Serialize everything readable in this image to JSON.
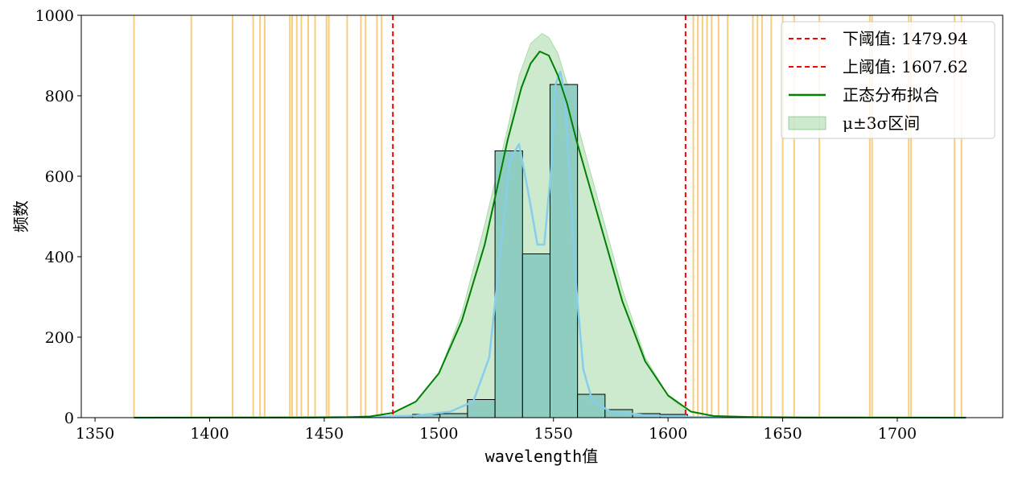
{
  "chart_data": {
    "type": "bar",
    "title": "",
    "xlabel": "wavelength值",
    "ylabel": "频数",
    "xlim": [
      1344,
      1746
    ],
    "ylim": [
      0,
      1000
    ],
    "xticks": [
      1350,
      1400,
      1450,
      1500,
      1550,
      1600,
      1650,
      1700
    ],
    "yticks": [
      0,
      200,
      400,
      600,
      800,
      1000
    ],
    "grid": false,
    "legend_position": "top-right",
    "histogram": {
      "bin_edges": [
        1476.5,
        1488.5,
        1500.5,
        1512.5,
        1524.5,
        1536.5,
        1548.5,
        1560.5,
        1572.5,
        1584.5,
        1596.5,
        1608.5
      ],
      "counts": [
        3,
        8,
        10,
        45,
        663,
        407,
        828,
        58,
        20,
        10,
        8
      ],
      "fill_color": "#8ccbc0",
      "edge_color": "#000000"
    },
    "kde_line": {
      "color": "#87ceeb",
      "x": [
        1367,
        1470,
        1490,
        1505,
        1515,
        1522,
        1527,
        1531,
        1535,
        1539,
        1543,
        1546,
        1549,
        1551,
        1553,
        1555,
        1557,
        1560,
        1563,
        1567,
        1575,
        1590,
        1610,
        1730
      ],
      "y": [
        0,
        2,
        5,
        15,
        40,
        150,
        420,
        640,
        680,
        560,
        430,
        430,
        620,
        830,
        860,
        800,
        600,
        320,
        120,
        40,
        15,
        6,
        2,
        0
      ]
    },
    "series": [
      {
        "name": "下阈值: 1479.94",
        "type": "vline",
        "x": 1479.94,
        "color": "#ff0000",
        "style": "dashed"
      },
      {
        "name": "上阈值: 1607.62",
        "type": "vline",
        "x": 1607.62,
        "color": "#ff0000",
        "style": "dashed"
      },
      {
        "name": "正态分布拟合",
        "type": "line",
        "color": "#008000",
        "x": [
          1367,
          1440,
          1460,
          1470,
          1480,
          1490,
          1500,
          1510,
          1520,
          1530,
          1536,
          1540,
          1544,
          1548,
          1552,
          1556,
          1560,
          1570,
          1580,
          1590,
          1600,
          1610,
          1620,
          1640,
          1660,
          1730
        ],
        "y": [
          0,
          0,
          1,
          3,
          12,
          40,
          110,
          240,
          430,
          690,
          820,
          880,
          910,
          900,
          850,
          780,
          690,
          490,
          290,
          140,
          55,
          15,
          4,
          1,
          0,
          0
        ]
      },
      {
        "name": "μ±3σ区间",
        "type": "area",
        "color": "#4caf50",
        "opacity": 0.28,
        "x": [
          1480,
          1490,
          1500,
          1510,
          1520,
          1530,
          1535,
          1540,
          1545,
          1548,
          1552,
          1556,
          1560,
          1570,
          1580,
          1590,
          1600,
          1607.62
        ],
        "y": [
          12,
          40,
          110,
          260,
          480,
          720,
          850,
          930,
          955,
          945,
          905,
          830,
          740,
          530,
          320,
          150,
          55,
          18
        ]
      }
    ],
    "outlier_lines": {
      "color": "#f5c060",
      "x": [
        1367,
        1392,
        1410,
        1419,
        1422,
        1424,
        1435,
        1436,
        1438,
        1440,
        1443,
        1446,
        1451,
        1452,
        1460,
        1466,
        1468,
        1473,
        1475,
        1611,
        1613,
        1615,
        1617,
        1619,
        1622,
        1626,
        1637,
        1639,
        1641,
        1645,
        1650,
        1655,
        1666,
        1688,
        1689,
        1705,
        1706,
        1725,
        1728
      ]
    }
  }
}
